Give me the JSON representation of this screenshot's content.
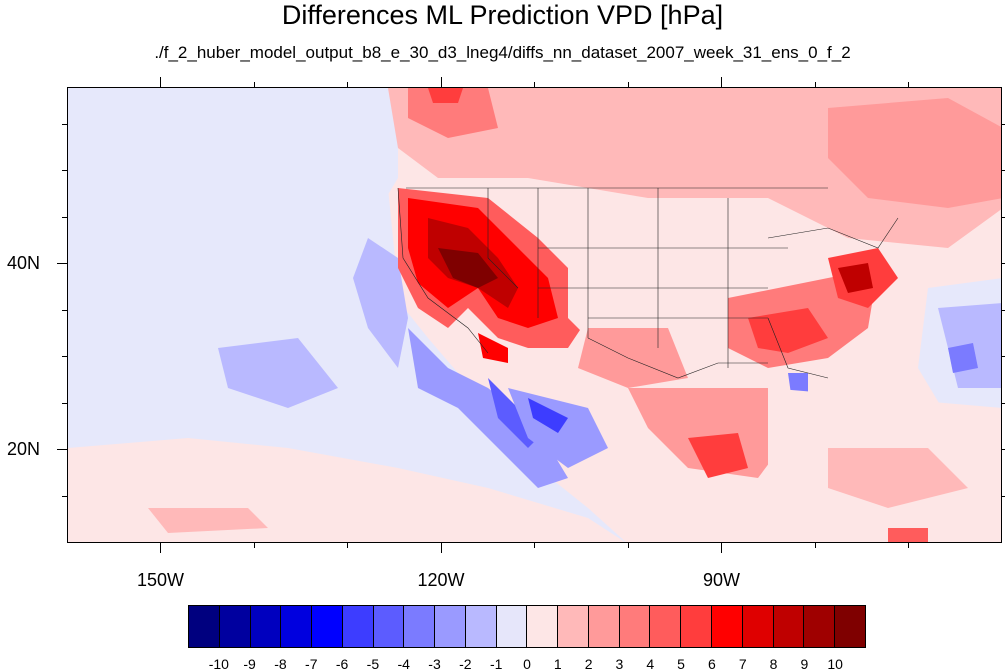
{
  "title": "Differences ML Prediction VPD [hPa]",
  "subtitle": "./f_2_huber_model_output_b8_e_30_d3_lneg4/diffs_nn_dataset_2007_week_31_ens_0_f_2",
  "map": {
    "projection": "cylindrical-equidistant",
    "lon_range": [
      -160,
      -60
    ],
    "lat_range": [
      10,
      59
    ],
    "x_ticks": [
      {
        "lon": -150,
        "label": "150W"
      },
      {
        "lon": -120,
        "label": "120W"
      },
      {
        "lon": -90,
        "label": "90W"
      }
    ],
    "y_ticks": [
      {
        "lat": 40,
        "label": "40N"
      },
      {
        "lat": 20,
        "label": "20N"
      }
    ],
    "field_description_colors": {
      "background": "#fde6e6",
      "ocean_negative": "#e6e8fb"
    }
  },
  "colorbar": {
    "labels": [
      "-10",
      "-9",
      "-8",
      "-7",
      "-6",
      "-5",
      "-4",
      "-3",
      "-2",
      "-1",
      "0",
      "1",
      "2",
      "3",
      "4",
      "5",
      "6",
      "7",
      "8",
      "9",
      "10"
    ],
    "colors": [
      "#00007f",
      "#00009f",
      "#0000bf",
      "#0000df",
      "#0000ff",
      "#3d3dff",
      "#5c5cff",
      "#7b7bff",
      "#9a9aff",
      "#b9b9ff",
      "#e6e6fa",
      "#fde6e6",
      "#ffb9b9",
      "#ff9a9a",
      "#ff7b7b",
      "#ff5c5c",
      "#ff3d3d",
      "#ff0000",
      "#df0000",
      "#bf0000",
      "#9f0000",
      "#7f0000"
    ]
  }
}
